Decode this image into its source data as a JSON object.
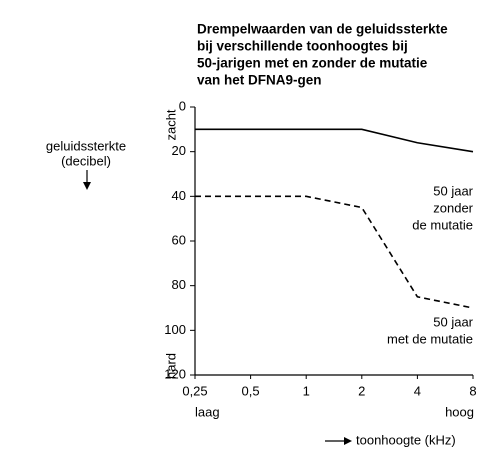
{
  "chart_data": {
    "type": "line",
    "title": [
      "Drempelwaarden van de geluidssterkte",
      "bij verschillende toonhoogtes bij",
      "50-jarigen met en zonder de mutatie",
      "van het DFNA9-gen"
    ],
    "y_label": [
      "geluidssterkte",
      "(decibel)"
    ],
    "y_end_labels": [
      "zacht",
      "hard"
    ],
    "x_end_labels": [
      "laag",
      "hoog"
    ],
    "x_label": "toonhoogte (kHz)",
    "categories": [
      "0,25",
      "0,5",
      "1",
      "2",
      "4",
      "8"
    ],
    "series": [
      {
        "name": [
          "50 jaar",
          "zonder",
          "de mutatie"
        ],
        "color": "#000000",
        "dash": "solid",
        "values": [
          10,
          10,
          10,
          10,
          16,
          20
        ]
      },
      {
        "name": [
          "50 jaar",
          "met de mutatie"
        ],
        "color": "#000000",
        "dash": "dashed",
        "values": [
          40,
          40,
          40,
          45,
          85,
          90
        ]
      }
    ],
    "ylim": [
      0,
      120
    ],
    "y_inverted": true,
    "yticks": [
      0,
      20,
      40,
      60,
      80,
      100,
      120
    ],
    "grid": false
  }
}
